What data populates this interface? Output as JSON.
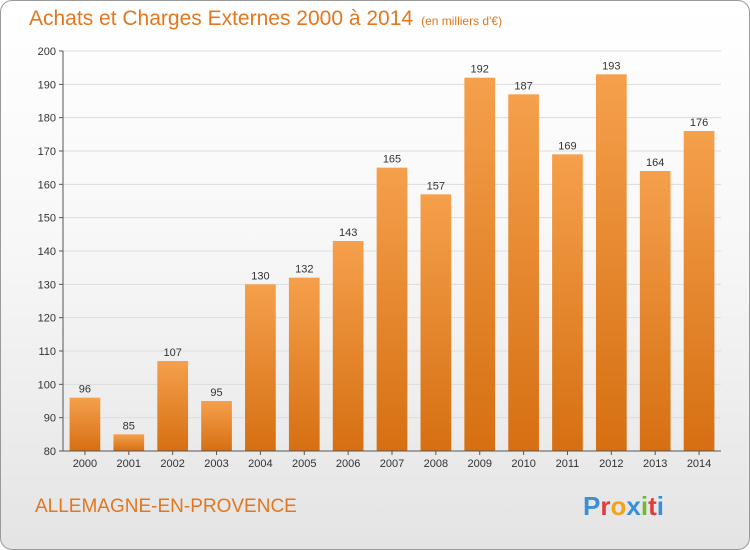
{
  "header": {
    "title": "Achats et Charges Externes 2000 à 2014",
    "unit": "(en milliers d'€)"
  },
  "footer": {
    "commune": "ALLEMAGNE-EN-PROVENCE",
    "logo_text": "Proxiti",
    "logo_colors": [
      "#3a8fd6",
      "#e23b3b",
      "#f2a21b",
      "#3a8fd6",
      "#6dbb2f",
      "#e23b3b",
      "#3a8fd6"
    ]
  },
  "colors": {
    "bar_top": "#f5a04c",
    "bar_bottom": "#d66f12",
    "title": "#e2771f",
    "grid": "#dddddd"
  },
  "chart_data": {
    "type": "bar",
    "title": "Achats et Charges Externes 2000 à 2014",
    "xlabel": "",
    "ylabel": "",
    "categories": [
      "2000",
      "2001",
      "2002",
      "2003",
      "2004",
      "2005",
      "2006",
      "2007",
      "2008",
      "2009",
      "2010",
      "2011",
      "2012",
      "2013",
      "2014"
    ],
    "values": [
      96,
      85,
      107,
      95,
      130,
      132,
      143,
      165,
      157,
      192,
      187,
      169,
      193,
      164,
      176
    ],
    "ylim": [
      80,
      200
    ],
    "yticks": [
      80,
      90,
      100,
      110,
      120,
      130,
      140,
      150,
      160,
      170,
      180,
      190,
      200
    ],
    "grid": true,
    "legend": "none"
  }
}
